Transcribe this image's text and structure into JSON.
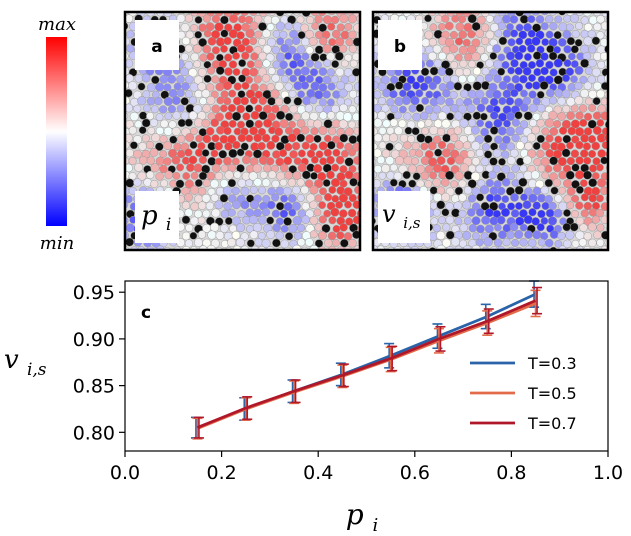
{
  "colorbar": {
    "max_label": "max",
    "min_label": "min",
    "max_color": "#ff0000",
    "mid_color": "#ffffff",
    "min_color": "#0000ff"
  },
  "panels": [
    {
      "letter": "a",
      "symbol_main": "p",
      "symbol_sub": "i"
    },
    {
      "letter": "b",
      "symbol_main": "v",
      "symbol_sub": "i,s"
    }
  ],
  "chart_data": {
    "type": "line",
    "panel_letter": "c",
    "xlabel_main": "p",
    "xlabel_sub": "i",
    "ylabel_main": "v",
    "ylabel_sub": "i,s",
    "xlim": [
      0.0,
      1.0
    ],
    "ylim": [
      0.78,
      0.962
    ],
    "xticks": [
      "0.0",
      "0.2",
      "0.4",
      "0.6",
      "0.8",
      "1.0"
    ],
    "xtick_values": [
      0.0,
      0.2,
      0.4,
      0.6,
      0.8,
      1.0
    ],
    "yticks": [
      "0.80",
      "0.85",
      "0.90",
      "0.95"
    ],
    "ytick_values": [
      0.8,
      0.85,
      0.9,
      0.95
    ],
    "legend_position": "lower-right",
    "x": [
      0.15,
      0.25,
      0.35,
      0.45,
      0.55,
      0.65,
      0.75,
      0.85
    ],
    "series": [
      {
        "name": "T=0.3",
        "color": "#2a63a8",
        "values": [
          0.805,
          0.825,
          0.844,
          0.862,
          0.882,
          0.903,
          0.924,
          0.948
        ],
        "errors": [
          0.011,
          0.012,
          0.012,
          0.012,
          0.013,
          0.013,
          0.013,
          0.014
        ]
      },
      {
        "name": "T=0.5",
        "color": "#e36b4a",
        "values": [
          0.804,
          0.825,
          0.843,
          0.86,
          0.878,
          0.898,
          0.917,
          0.938
        ],
        "errors": [
          0.011,
          0.012,
          0.012,
          0.012,
          0.013,
          0.013,
          0.013,
          0.014
        ]
      },
      {
        "name": "T=0.7",
        "color": "#b0182a",
        "values": [
          0.805,
          0.826,
          0.844,
          0.861,
          0.879,
          0.9,
          0.919,
          0.941
        ],
        "errors": [
          0.011,
          0.012,
          0.012,
          0.012,
          0.013,
          0.013,
          0.013,
          0.014
        ]
      }
    ]
  }
}
